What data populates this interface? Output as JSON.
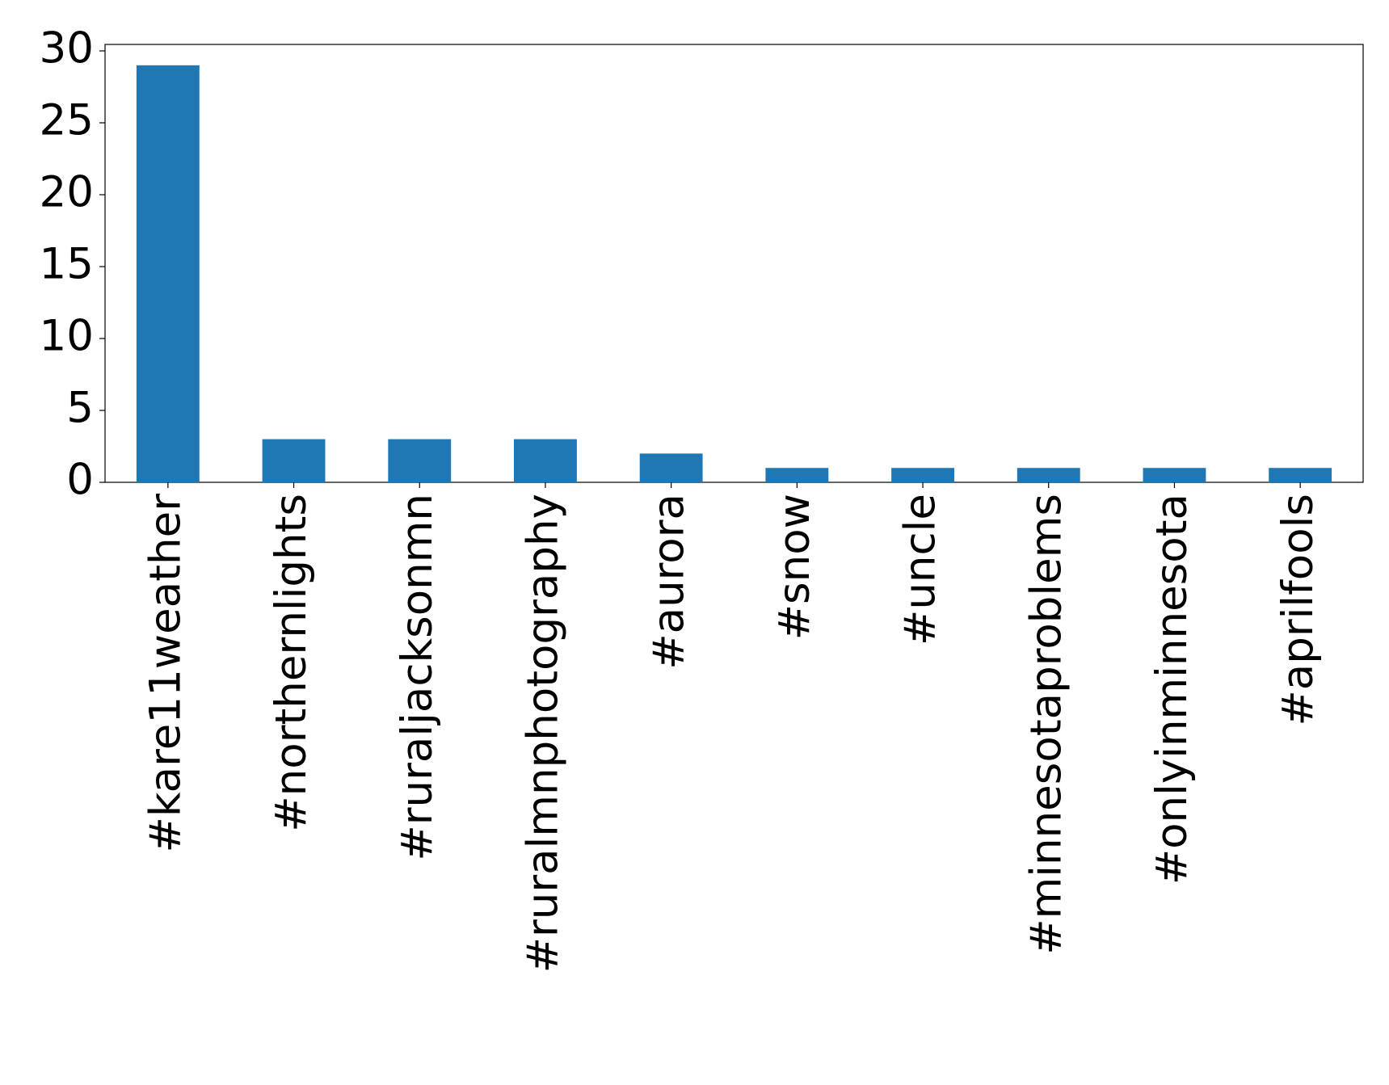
{
  "chart_data": {
    "type": "bar",
    "categories": [
      "#kare11weather",
      "#northernlights",
      "#ruraljacksonmn",
      "#ruralmnphotography",
      "#aurora",
      "#snow",
      "#uncle",
      "#minnesotaproblems",
      "#onlyinminnesota",
      "#aprilfools"
    ],
    "values": [
      29,
      3,
      3,
      3,
      2,
      1,
      1,
      1,
      1,
      1
    ],
    "color": "#1f77b4",
    "ylim": [
      0,
      30.45
    ],
    "yticks": [
      0,
      5,
      10,
      15,
      20,
      25,
      30
    ],
    "grid": false
  }
}
